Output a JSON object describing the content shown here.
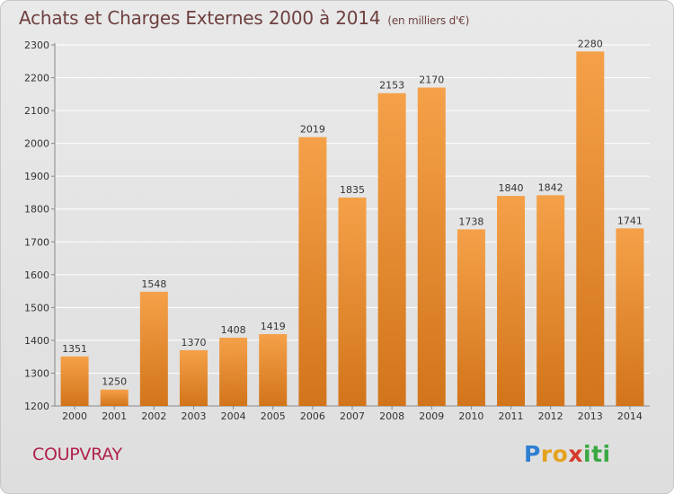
{
  "header": {
    "title": "Achats et Charges Externes 2000 à 2014",
    "subtitle": "(en milliers d'€)"
  },
  "footer": {
    "commune": "COUPVRAY",
    "brand": {
      "letters": [
        "P",
        "r",
        "o",
        "x",
        "i",
        "t",
        "i"
      ],
      "colors": [
        "#2d7fd0",
        "#e5a21c",
        "#e5a21c",
        "#d63a2a",
        "#3aa843",
        "#3aa843",
        "#3aa843"
      ]
    }
  },
  "chart_data": {
    "type": "bar",
    "categories": [
      "2000",
      "2001",
      "2002",
      "2003",
      "2004",
      "2005",
      "2006",
      "2007",
      "2008",
      "2009",
      "2010",
      "2011",
      "2012",
      "2013",
      "2014"
    ],
    "values": [
      1351,
      1250,
      1548,
      1370,
      1408,
      1419,
      2019,
      1835,
      2153,
      2170,
      1738,
      1840,
      1842,
      2280,
      1741
    ],
    "ylim": [
      1200,
      2300
    ],
    "yticks": [
      1200,
      1300,
      1400,
      1500,
      1600,
      1700,
      1800,
      1900,
      2000,
      2100,
      2200,
      2300
    ],
    "grid": true,
    "bar_color_top": "#f5a149",
    "bar_color_bottom": "#d2741a"
  }
}
